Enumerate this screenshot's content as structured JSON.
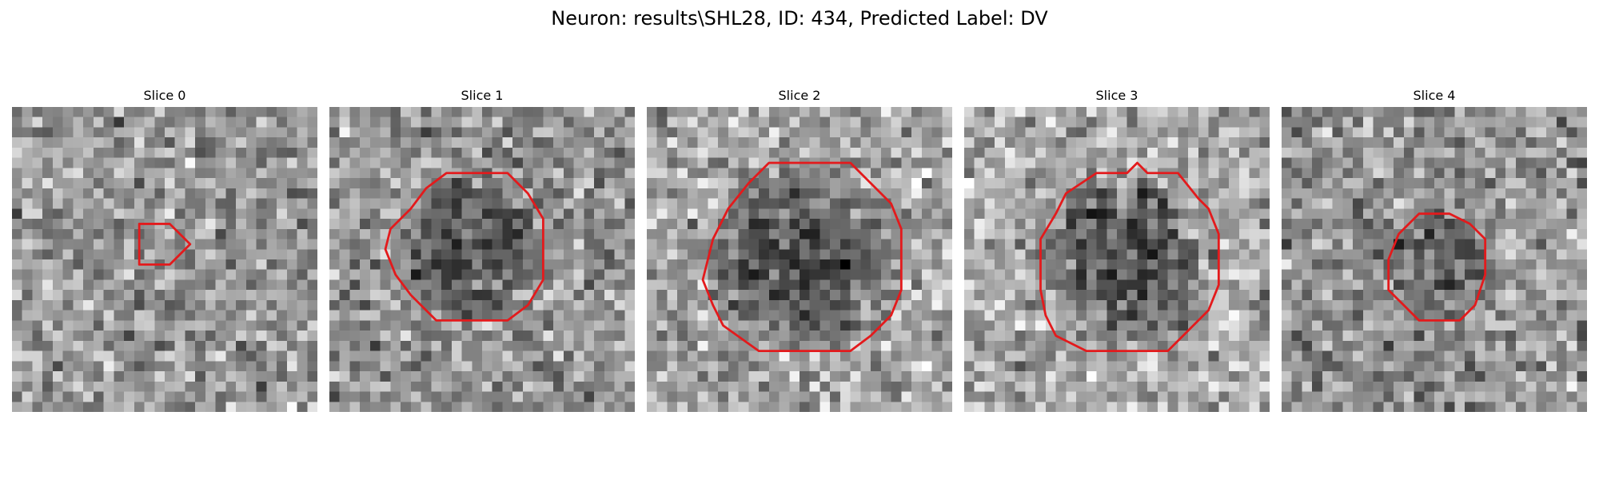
{
  "figure": {
    "title": "Neuron: results\\SHL28, ID: 434, Predicted Label: DV"
  },
  "colors": {
    "contour": "#e31a1c",
    "background": "#ffffff"
  },
  "grid_size": 30,
  "slices": [
    {
      "label": "Slice 0",
      "seed": 11,
      "base": 150,
      "spot": null,
      "outline": [
        [
          12.5,
          11.5
        ],
        [
          15.5,
          11.5
        ],
        [
          17.5,
          13.5
        ],
        [
          15.5,
          15.5
        ],
        [
          12.5,
          15.5
        ]
      ]
    },
    {
      "label": "Slice 1",
      "seed": 23,
      "base": 150,
      "spot": {
        "cx": 14,
        "cy": 13.5,
        "r": 8,
        "depth": 70
      },
      "outline": [
        [
          11.5,
          6.5
        ],
        [
          17.5,
          6.5
        ],
        [
          19.5,
          8.5
        ],
        [
          21,
          11
        ],
        [
          21,
          17
        ],
        [
          19.5,
          19.5
        ],
        [
          17.5,
          21
        ],
        [
          10.5,
          21
        ],
        [
          8,
          18.5
        ],
        [
          6.5,
          16.5
        ],
        [
          5.5,
          14
        ],
        [
          6,
          12
        ],
        [
          8,
          10
        ],
        [
          9.5,
          8
        ]
      ]
    },
    {
      "label": "Slice 2",
      "seed": 37,
      "base": 165,
      "spot": {
        "cx": 15,
        "cy": 15,
        "r": 10,
        "depth": 80
      },
      "outline": [
        [
          12,
          5.5
        ],
        [
          20,
          5.5
        ],
        [
          22,
          7.5
        ],
        [
          24,
          9.5
        ],
        [
          25,
          12
        ],
        [
          25,
          18
        ],
        [
          24,
          20.5
        ],
        [
          22,
          22.5
        ],
        [
          20,
          24
        ],
        [
          11,
          24
        ],
        [
          7.5,
          21.5
        ],
        [
          6.5,
          19.5
        ],
        [
          5.5,
          17
        ],
        [
          6.5,
          13
        ],
        [
          8,
          10
        ],
        [
          10,
          7.5
        ]
      ]
    },
    {
      "label": "Slice 3",
      "seed": 41,
      "base": 170,
      "spot": {
        "cx": 15.5,
        "cy": 15,
        "r": 9.5,
        "depth": 85
      },
      "outline": [
        [
          13,
          6.5
        ],
        [
          16,
          6.5
        ],
        [
          17,
          5.5
        ],
        [
          18,
          6.5
        ],
        [
          21,
          6.5
        ],
        [
          23,
          9
        ],
        [
          24,
          10
        ],
        [
          25,
          12.5
        ],
        [
          25,
          17.5
        ],
        [
          24,
          20
        ],
        [
          22,
          22
        ],
        [
          20,
          24
        ],
        [
          12,
          24
        ],
        [
          9,
          22.5
        ],
        [
          8,
          20.5
        ],
        [
          7.5,
          18
        ],
        [
          7.5,
          13
        ],
        [
          9,
          10.5
        ],
        [
          10,
          8.5
        ]
      ]
    },
    {
      "label": "Slice 4",
      "seed": 53,
      "base": 150,
      "spot": {
        "cx": 15,
        "cy": 15.5,
        "r": 5.5,
        "depth": 55
      },
      "outline": [
        [
          13.5,
          10.5
        ],
        [
          16.5,
          10.5
        ],
        [
          18.5,
          11.5
        ],
        [
          20,
          13
        ],
        [
          20,
          16.5
        ],
        [
          19,
          19.5
        ],
        [
          17.5,
          21
        ],
        [
          13.5,
          21
        ],
        [
          12,
          19.5
        ],
        [
          10.5,
          18
        ],
        [
          10.5,
          15
        ],
        [
          11.5,
          12.5
        ]
      ]
    }
  ]
}
